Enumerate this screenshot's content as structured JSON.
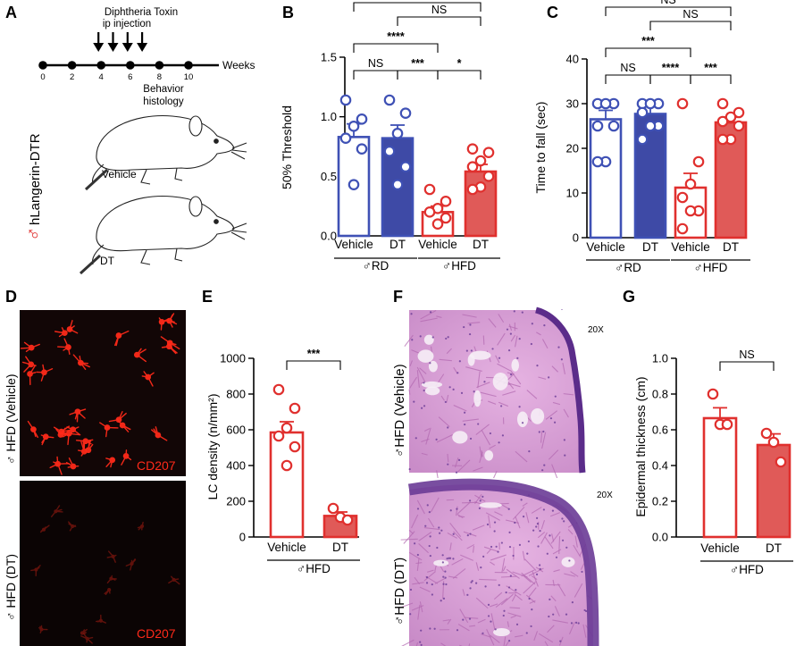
{
  "panel_letters": [
    "A",
    "B",
    "C",
    "D",
    "E",
    "F",
    "G"
  ],
  "timeline": {
    "injection_label_line1": "Diphtheria Toxin",
    "injection_label_line2": "ip injection",
    "axis_unit": "Weeks",
    "ticks": [
      0,
      2,
      4,
      6,
      8,
      10
    ],
    "injection_weeks": [
      4,
      5,
      6,
      7
    ],
    "endpoint_label_line1": "Behavior",
    "endpoint_label_line2": "histology",
    "model_label": "hLangerin-DTR",
    "sex_symbol": "♂",
    "mouse_labels": [
      "Vehicle",
      "DT"
    ]
  },
  "colors": {
    "blue": "#3f51b5",
    "blue_fill": "#3e4aa6",
    "red": "#e0302e",
    "red_fill": "#e05a58",
    "micro_red": "#ff2a1a",
    "he_pink": "#d99ad6",
    "he_purple": "#6a3b96"
  },
  "micrographs": {
    "D": {
      "row_labels": [
        "♂ HFD (Vehicle)",
        "♂ HFD (DT)"
      ],
      "stain_label": "CD207",
      "stain_labels": [
        "CD207",
        "CD207"
      ]
    },
    "F": {
      "row_labels": [
        "♂HFD (Vehicle)",
        "♂HFD (DT)"
      ],
      "magnification": "20X",
      "magnifications": [
        "20X",
        "20X"
      ]
    }
  },
  "chart_data": [
    {
      "panel": "B",
      "type": "bar",
      "ylabel": "50% Threshold",
      "ylim": [
        0,
        1.5
      ],
      "yticks": [
        0.0,
        0.5,
        1.0,
        1.5
      ],
      "ytick_labels": [
        "0.0",
        "0.5",
        "1.0",
        "1.5"
      ],
      "categories": [
        "Vehicle",
        "DT",
        "Vehicle",
        "DT"
      ],
      "groups": [
        {
          "label": "♂RD",
          "span": [
            0,
            1
          ]
        },
        {
          "label": "♂HFD",
          "span": [
            2,
            3
          ]
        }
      ],
      "values": [
        0.83,
        0.82,
        0.2,
        0.54
      ],
      "errors": [
        0.11,
        0.11,
        0.05,
        0.06
      ],
      "colors": [
        "blue",
        "blue",
        "red",
        "red"
      ],
      "filled": [
        false,
        true,
        false,
        true
      ],
      "points": [
        [
          1.14,
          0.98,
          0.92,
          0.82,
          0.73,
          0.43
        ],
        [
          1.14,
          1.03,
          0.86,
          0.71,
          0.58,
          0.43
        ],
        [
          0.39,
          0.29,
          0.23,
          0.2,
          0.15,
          0.1
        ],
        [
          0.73,
          0.7,
          0.63,
          0.58,
          0.5,
          0.41,
          0.39
        ]
      ],
      "comparisons": [
        {
          "a": 0,
          "b": 1,
          "label": "NS"
        },
        {
          "a": 1,
          "b": 2,
          "label": "***"
        },
        {
          "a": 2,
          "b": 3,
          "label": "*"
        },
        {
          "a": 0,
          "b": 2,
          "label": "****"
        },
        {
          "a": 1,
          "b": 3,
          "label": "NS"
        },
        {
          "a": 0,
          "b": 3,
          "label": "NS"
        }
      ]
    },
    {
      "panel": "C",
      "type": "bar",
      "ylabel": "Time to fall (sec)",
      "ylim": [
        0,
        40
      ],
      "yticks": [
        0,
        10,
        20,
        30,
        40
      ],
      "ytick_labels": [
        "0",
        "10",
        "20",
        "30",
        "40"
      ],
      "categories": [
        "Vehicle",
        "DT",
        "Vehicle",
        "DT"
      ],
      "groups": [
        {
          "label": "♂RD",
          "span": [
            0,
            1
          ]
        },
        {
          "label": "♂HFD",
          "span": [
            2,
            3
          ]
        }
      ],
      "values": [
        26.5,
        27.7,
        11.2,
        25.8
      ],
      "errors": [
        2.0,
        1.6,
        3.2,
        1.2
      ],
      "colors": [
        "blue",
        "blue",
        "red",
        "red"
      ],
      "filled": [
        false,
        true,
        false,
        true
      ],
      "points": [
        [
          30,
          30,
          30,
          25,
          25,
          17,
          17
        ],
        [
          30,
          30,
          30,
          28,
          25,
          25,
          22
        ],
        [
          30,
          17,
          12,
          9,
          6,
          6,
          2
        ],
        [
          30,
          28,
          27,
          26,
          25,
          22,
          22
        ]
      ],
      "comparisons": [
        {
          "a": 0,
          "b": 1,
          "label": "NS"
        },
        {
          "a": 1,
          "b": 2,
          "label": "****"
        },
        {
          "a": 2,
          "b": 3,
          "label": "***"
        },
        {
          "a": 0,
          "b": 2,
          "label": "***"
        },
        {
          "a": 1,
          "b": 3,
          "label": "NS"
        },
        {
          "a": 0,
          "b": 3,
          "label": "NS"
        }
      ]
    },
    {
      "panel": "E",
      "type": "bar",
      "ylabel": "LC density (n/mm²)",
      "ylim": [
        0,
        1000
      ],
      "yticks": [
        0,
        200,
        400,
        600,
        800,
        1000
      ],
      "ytick_labels": [
        "0",
        "200",
        "400",
        "600",
        "800",
        "1000"
      ],
      "categories": [
        "Vehicle",
        "DT"
      ],
      "groups": [
        {
          "label": "♂HFD",
          "span": [
            0,
            1
          ]
        }
      ],
      "values": [
        585,
        118
      ],
      "errors": [
        60,
        22
      ],
      "colors": [
        "red",
        "red"
      ],
      "filled": [
        false,
        true
      ],
      "points": [
        [
          825,
          720,
          610,
          565,
          505,
          400
        ],
        [
          160,
          110,
          95
        ]
      ],
      "comparisons": [
        {
          "a": 0,
          "b": 1,
          "label": "***"
        }
      ]
    },
    {
      "panel": "G",
      "type": "bar",
      "ylabel": "Epidermal thickness (cm)",
      "ylim": [
        0,
        1.0
      ],
      "yticks": [
        0.0,
        0.2,
        0.4,
        0.6,
        0.8,
        1.0
      ],
      "ytick_labels": [
        "0.0",
        "0.2",
        "0.4",
        "0.6",
        "0.8",
        "1.0"
      ],
      "categories": [
        "Vehicle",
        "DT"
      ],
      "groups": [
        {
          "label": "♂HFD",
          "span": [
            0,
            1
          ]
        }
      ],
      "values": [
        0.665,
        0.515
      ],
      "errors": [
        0.058,
        0.062
      ],
      "colors": [
        "red",
        "red"
      ],
      "filled": [
        false,
        true
      ],
      "points": [
        [
          0.8,
          0.63,
          0.63
        ],
        [
          0.58,
          0.53,
          0.42
        ]
      ],
      "comparisons": [
        {
          "a": 0,
          "b": 1,
          "label": "NS"
        }
      ]
    }
  ]
}
